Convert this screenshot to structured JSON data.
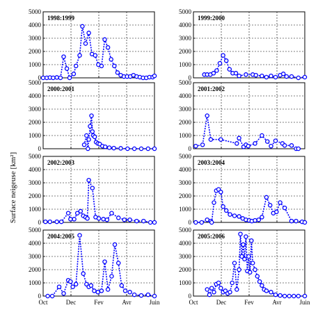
{
  "ylabel": "Surface neigeuse [km²]",
  "x_ticks": [
    "Oct",
    "Dec",
    "Fev",
    "Avr",
    "Juin"
  ],
  "y_ticks": [
    "0",
    "1000",
    "2000",
    "3000",
    "4000",
    "5000"
  ],
  "style": {
    "line_color": "#0000ff",
    "marker": "open-circle",
    "line": "dotted",
    "grid": "dashed"
  },
  "chart_data": [
    {
      "type": "line",
      "title": "1998:1999",
      "ylim": [
        0,
        5000
      ],
      "xlim": [
        0,
        244
      ],
      "x": [
        0,
        8,
        15,
        22,
        30,
        38,
        45,
        52,
        58,
        67,
        72,
        80,
        86,
        93,
        100,
        107,
        114,
        121,
        128,
        135,
        142,
        149,
        156,
        163,
        170,
        177,
        184,
        191,
        198,
        205,
        212,
        219,
        226,
        233,
        240,
        244
      ],
      "y": [
        0,
        0,
        20,
        0,
        30,
        0,
        1600,
        700,
        0,
        300,
        900,
        1700,
        3900,
        2600,
        3400,
        1800,
        1700,
        1000,
        900,
        2900,
        2300,
        1400,
        900,
        400,
        200,
        100,
        100,
        100,
        200,
        100,
        50,
        0,
        0,
        50,
        50,
        150
      ]
    },
    {
      "type": "line",
      "title": "1999:2000",
      "ylim": [
        0,
        5000
      ],
      "xlim": [
        0,
        244
      ],
      "x": [
        24,
        30,
        37,
        44,
        51,
        58,
        65,
        72,
        79,
        86,
        93,
        100,
        115,
        130,
        137,
        150,
        160,
        170,
        180,
        190,
        197,
        204,
        215,
        230,
        244
      ],
      "y": [
        250,
        250,
        250,
        350,
        550,
        1100,
        1700,
        1300,
        650,
        350,
        350,
        150,
        250,
        250,
        200,
        150,
        50,
        150,
        50,
        200,
        300,
        100,
        100,
        0,
        50
      ]
    },
    {
      "type": "line",
      "title": "2000:2001",
      "ylim": [
        0,
        5000
      ],
      "xlim": [
        0,
        244
      ],
      "x": [
        90,
        95,
        98,
        100,
        103,
        106,
        108,
        110,
        113,
        116,
        120,
        124,
        130,
        136,
        145,
        155,
        170,
        185,
        200,
        215,
        230,
        244
      ],
      "y": [
        300,
        1000,
        0,
        700,
        1700,
        2500,
        1300,
        1000,
        900,
        500,
        400,
        350,
        200,
        150,
        80,
        50,
        30,
        0,
        0,
        0,
        0,
        0
      ]
    },
    {
      "type": "line",
      "title": "2001:2002",
      "ylim": [
        0,
        5000
      ],
      "xlim": [
        0,
        244
      ],
      "x": [
        5,
        20,
        30,
        38,
        60,
        95,
        100,
        110,
        115,
        120,
        135,
        150,
        162,
        170,
        180,
        195,
        200,
        215,
        225,
        230
      ],
      "y": [
        200,
        300,
        2500,
        700,
        700,
        400,
        800,
        150,
        300,
        200,
        400,
        1000,
        550,
        200,
        600,
        400,
        250,
        250,
        0,
        0
      ]
    },
    {
      "type": "line",
      "title": "2002:2003",
      "ylim": [
        0,
        5000
      ],
      "xlim": [
        0,
        244
      ],
      "x": [
        5,
        15,
        30,
        40,
        55,
        60,
        68,
        75,
        82,
        88,
        93,
        97,
        100,
        108,
        115,
        122,
        132,
        140,
        150,
        165,
        178,
        190,
        205,
        220,
        235,
        244
      ],
      "y": [
        50,
        50,
        50,
        50,
        700,
        250,
        250,
        700,
        850,
        500,
        400,
        300,
        3200,
        2600,
        400,
        300,
        250,
        200,
        700,
        350,
        200,
        200,
        100,
        100,
        0,
        0
      ]
    },
    {
      "type": "line",
      "title": "2003:2004",
      "ylim": [
        0,
        5000
      ],
      "xlim": [
        0,
        244
      ],
      "x": [
        5,
        18,
        30,
        38,
        40,
        45,
        50,
        55,
        60,
        65,
        72,
        80,
        90,
        100,
        108,
        115,
        122,
        128,
        135,
        143,
        150,
        160,
        168,
        175,
        182,
        190,
        200,
        215,
        225,
        238,
        244
      ],
      "y": [
        0,
        0,
        200,
        100,
        0,
        1500,
        2400,
        2500,
        2300,
        1200,
        900,
        600,
        500,
        450,
        300,
        200,
        150,
        100,
        150,
        200,
        400,
        1900,
        1300,
        700,
        800,
        1500,
        1100,
        100,
        100,
        50,
        0
      ]
    },
    {
      "type": "line",
      "title": "2004:2005",
      "ylim": [
        0,
        5000
      ],
      "xlim": [
        0,
        244
      ],
      "x": [
        10,
        20,
        35,
        45,
        55,
        60,
        65,
        72,
        80,
        88,
        95,
        100,
        105,
        112,
        120,
        128,
        135,
        142,
        150,
        157,
        165,
        172,
        180,
        190,
        200,
        215,
        230,
        244
      ],
      "y": [
        0,
        0,
        700,
        200,
        1200,
        1100,
        700,
        900,
        4600,
        1700,
        900,
        700,
        800,
        400,
        300,
        400,
        2600,
        500,
        1500,
        3900,
        2500,
        800,
        400,
        300,
        100,
        50,
        100,
        0
      ]
    },
    {
      "type": "line",
      "title": "2005:2006",
      "ylim": [
        0,
        5000
      ],
      "xlim": [
        0,
        244
      ],
      "x": [
        30,
        35,
        40,
        45,
        50,
        55,
        60,
        65,
        70,
        75,
        80,
        85,
        90,
        95,
        100,
        103,
        106,
        109,
        112,
        115,
        118,
        121,
        124,
        127,
        130,
        135,
        140,
        145,
        150,
        155,
        160,
        170,
        180,
        190,
        200,
        210,
        220,
        230,
        244
      ],
      "y": [
        500,
        100,
        600,
        300,
        900,
        1000,
        600,
        300,
        400,
        200,
        300,
        1000,
        2500,
        500,
        2000,
        4700,
        3000,
        3900,
        2800,
        4500,
        1900,
        3000,
        1800,
        4200,
        2500,
        2000,
        1500,
        1100,
        800,
        500,
        400,
        300,
        100,
        50,
        0,
        0,
        0,
        0,
        0
      ]
    }
  ]
}
